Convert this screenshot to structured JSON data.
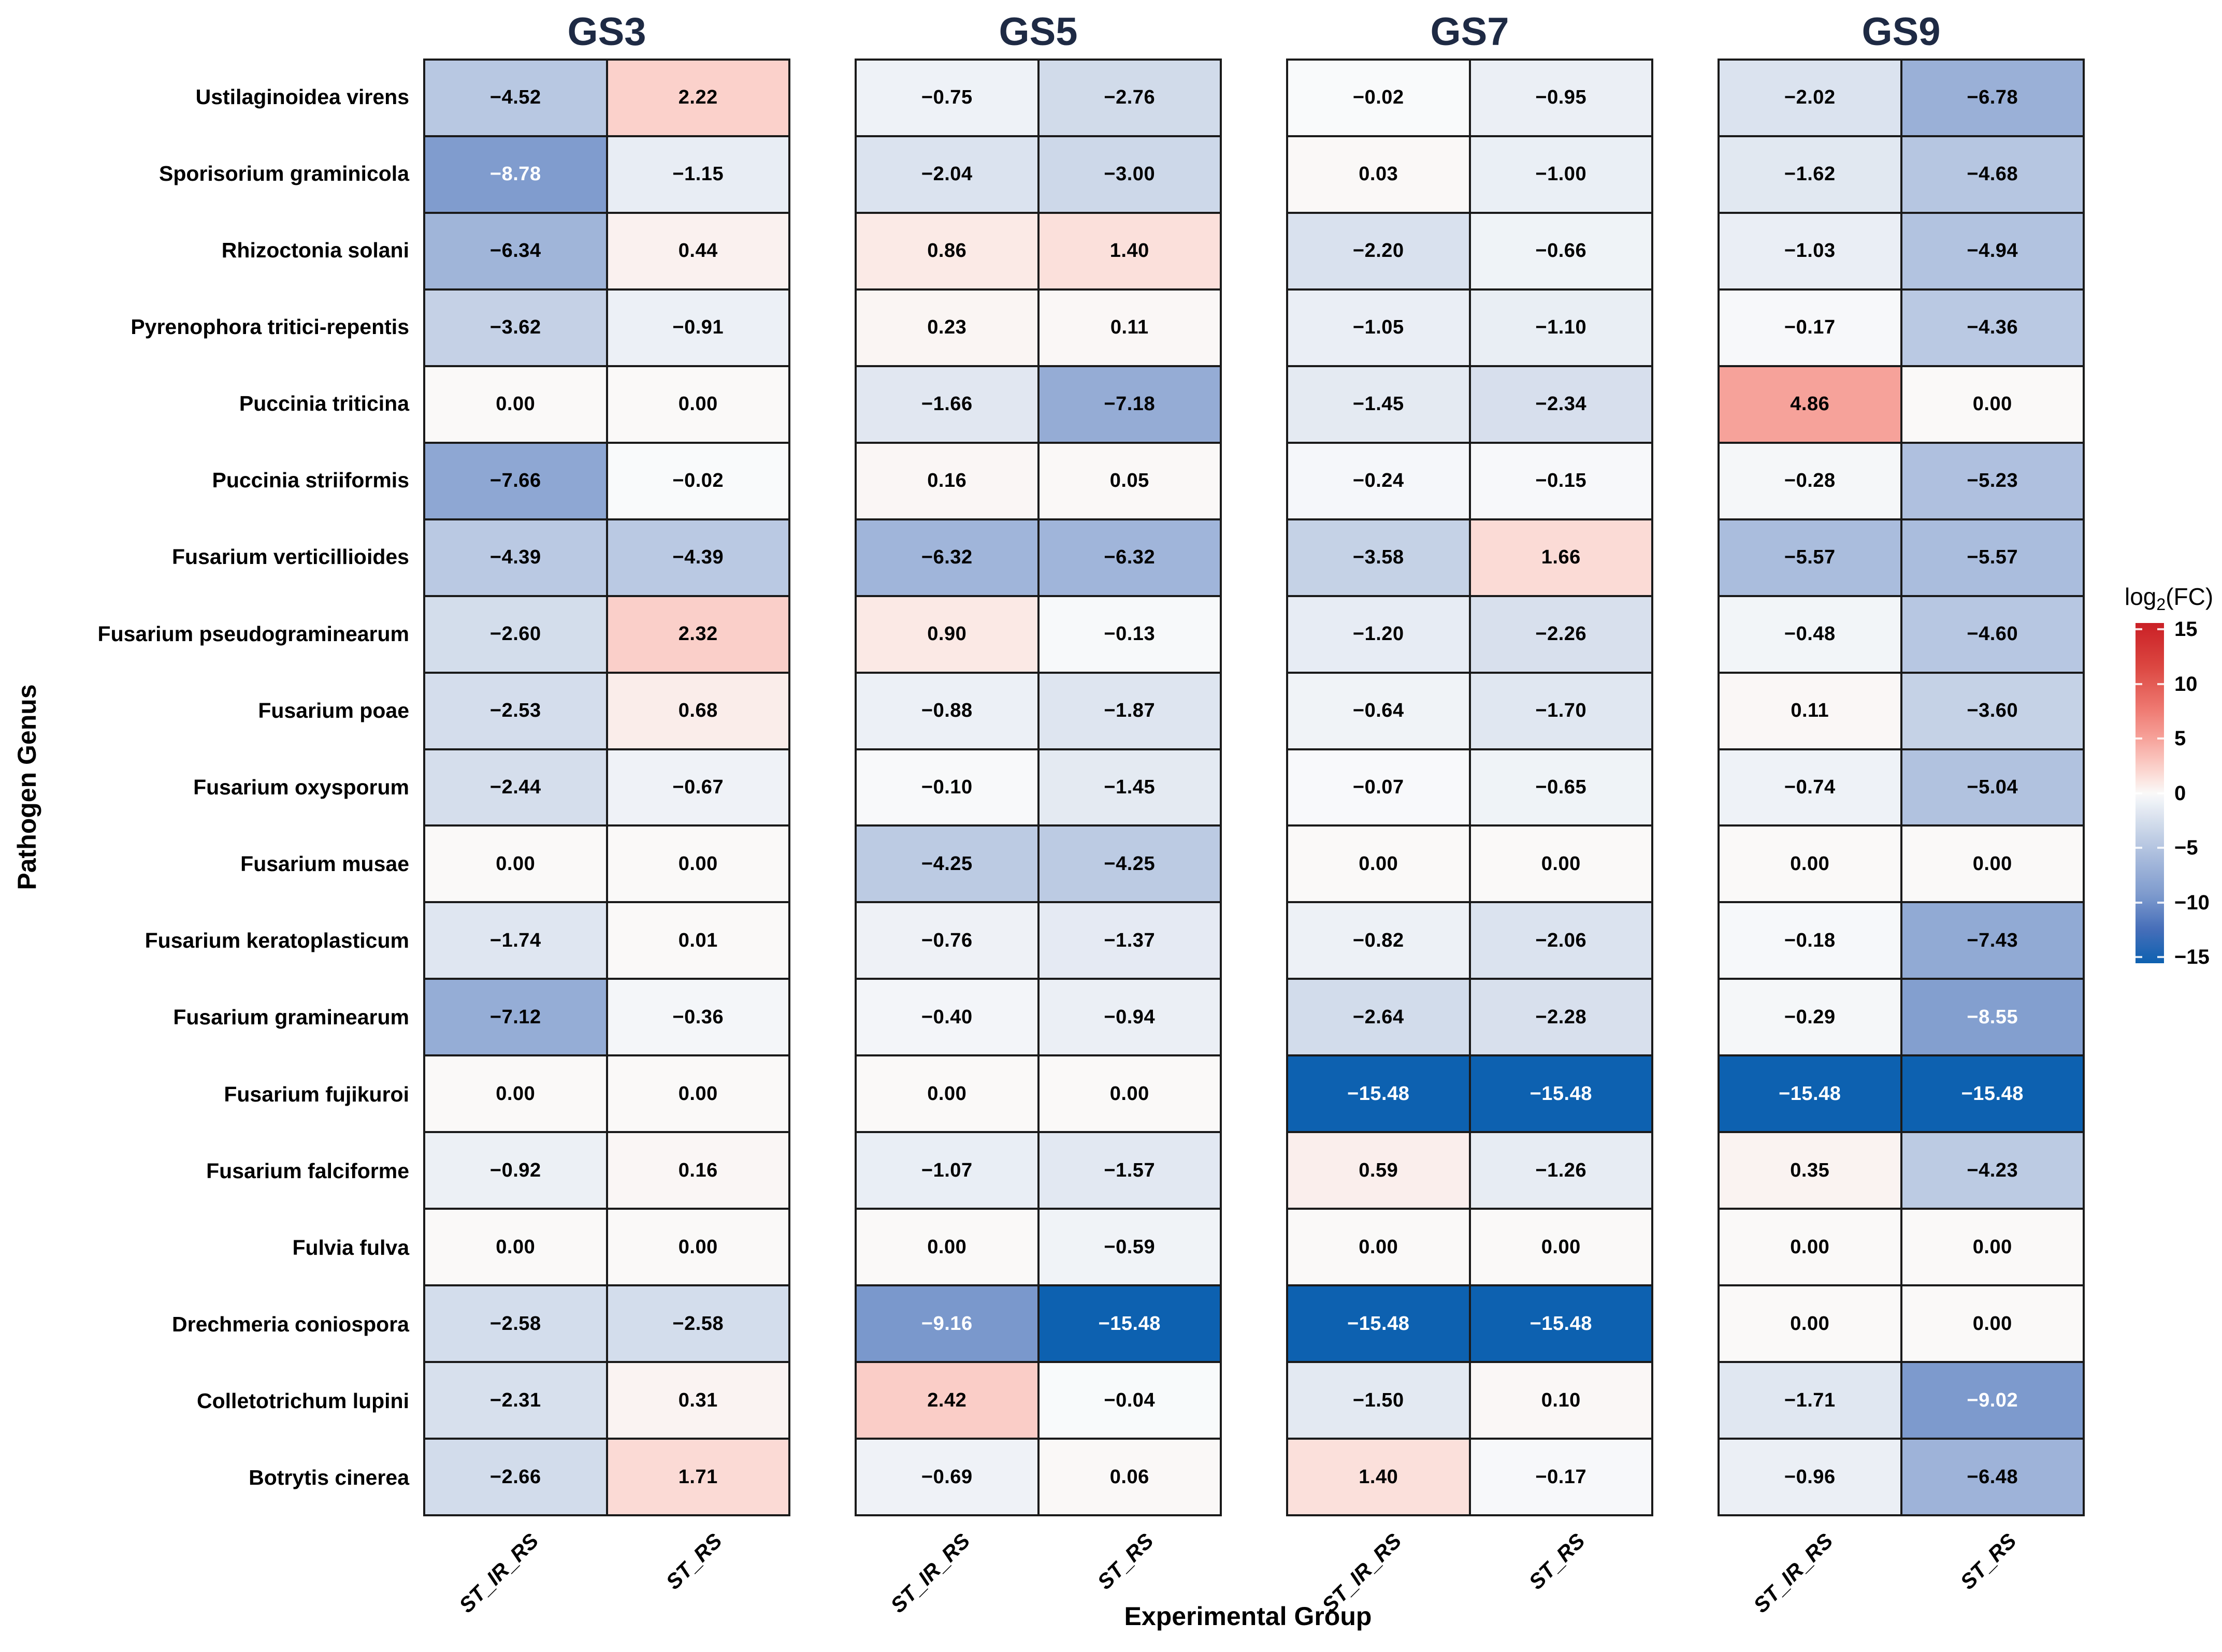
{
  "figure": {
    "y_axis_label": "Pathogen Genus",
    "x_axis_label": "Experimental Group"
  },
  "legend": {
    "title_prefix": "log",
    "title_sub": "2",
    "title_suffix": "(FC)",
    "min": -15,
    "max": 15,
    "ticks": [
      15,
      10,
      5,
      0,
      -5,
      -10,
      -15
    ],
    "high_color": "#ca2026",
    "mid_color": "#f9f9fa",
    "low_color": "#0d61b0"
  },
  "chart_data": {
    "type": "heatmap",
    "value_label": "log2(FC)",
    "x_categories": [
      "ST_IR_RS",
      "ST_RS"
    ],
    "y_categories": [
      "Ustilaginoidea virens",
      "Sporisorium graminicola",
      "Rhizoctonia solani",
      "Pyrenophora tritici-repentis",
      "Puccinia triticina",
      "Puccinia striiformis",
      "Fusarium verticillioides",
      "Fusarium pseudograminearum",
      "Fusarium poae",
      "Fusarium oxysporum",
      "Fusarium musae",
      "Fusarium keratoplasticum",
      "Fusarium graminearum",
      "Fusarium fujikuroi",
      "Fusarium falciforme",
      "Fulvia fulva",
      "Drechmeria coniospora",
      "Colletotrichum lupini",
      "Botrytis cinerea"
    ],
    "facets": [
      {
        "label": "GS3",
        "values": [
          [
            -4.52,
            2.22
          ],
          [
            -8.78,
            -1.15
          ],
          [
            -6.34,
            0.44
          ],
          [
            -3.62,
            -0.91
          ],
          [
            0.0,
            0.0
          ],
          [
            -7.66,
            -0.02
          ],
          [
            -4.39,
            -4.39
          ],
          [
            -2.6,
            2.32
          ],
          [
            -2.53,
            0.68
          ],
          [
            -2.44,
            -0.67
          ],
          [
            0.0,
            0.0
          ],
          [
            -1.74,
            0.01
          ],
          [
            -7.12,
            -0.36
          ],
          [
            0.0,
            0.0
          ],
          [
            -0.92,
            0.16
          ],
          [
            0.0,
            0.0
          ],
          [
            -2.58,
            -2.58
          ],
          [
            -2.31,
            0.31
          ],
          [
            -2.66,
            1.71
          ]
        ]
      },
      {
        "label": "GS5",
        "values": [
          [
            -0.75,
            -2.76
          ],
          [
            -2.04,
            -3.0
          ],
          [
            0.86,
            1.4
          ],
          [
            0.23,
            0.11
          ],
          [
            -1.66,
            -7.18
          ],
          [
            0.16,
            0.05
          ],
          [
            -6.32,
            -6.32
          ],
          [
            0.9,
            -0.13
          ],
          [
            -0.88,
            -1.87
          ],
          [
            -0.1,
            -1.45
          ],
          [
            -4.25,
            -4.25
          ],
          [
            -0.76,
            -1.37
          ],
          [
            -0.4,
            -0.94
          ],
          [
            0.0,
            0.0
          ],
          [
            -1.07,
            -1.57
          ],
          [
            0.0,
            -0.59
          ],
          [
            -9.16,
            -15.48
          ],
          [
            2.42,
            -0.04
          ],
          [
            -0.69,
            0.06
          ]
        ]
      },
      {
        "label": "GS7",
        "values": [
          [
            -0.02,
            -0.95
          ],
          [
            0.03,
            -1.0
          ],
          [
            -2.2,
            -0.66
          ],
          [
            -1.05,
            -1.1
          ],
          [
            -1.45,
            -2.34
          ],
          [
            -0.24,
            -0.15
          ],
          [
            -3.58,
            1.66
          ],
          [
            -1.2,
            -2.26
          ],
          [
            -0.64,
            -1.7
          ],
          [
            -0.07,
            -0.65
          ],
          [
            0.0,
            0.0
          ],
          [
            -0.82,
            -2.06
          ],
          [
            -2.64,
            -2.28
          ],
          [
            -15.48,
            -15.48
          ],
          [
            0.59,
            -1.26
          ],
          [
            0.0,
            0.0
          ],
          [
            -15.48,
            -15.48
          ],
          [
            -1.5,
            0.1
          ],
          [
            1.4,
            -0.17
          ]
        ]
      },
      {
        "label": "GS9",
        "values": [
          [
            -2.02,
            -6.78
          ],
          [
            -1.62,
            -4.68
          ],
          [
            -1.03,
            -4.94
          ],
          [
            -0.17,
            -4.36
          ],
          [
            4.86,
            0.0
          ],
          [
            -0.28,
            -5.23
          ],
          [
            -5.57,
            -5.57
          ],
          [
            -0.48,
            -4.6
          ],
          [
            0.11,
            -3.6
          ],
          [
            -0.74,
            -5.04
          ],
          [
            0.0,
            0.0
          ],
          [
            -0.18,
            -7.43
          ],
          [
            -0.29,
            -8.55
          ],
          [
            -15.48,
            -15.48
          ],
          [
            0.35,
            -4.23
          ],
          [
            0.0,
            0.0
          ],
          [
            0.0,
            0.0
          ],
          [
            -1.71,
            -9.02
          ],
          [
            -0.96,
            -6.48
          ]
        ]
      }
    ]
  }
}
